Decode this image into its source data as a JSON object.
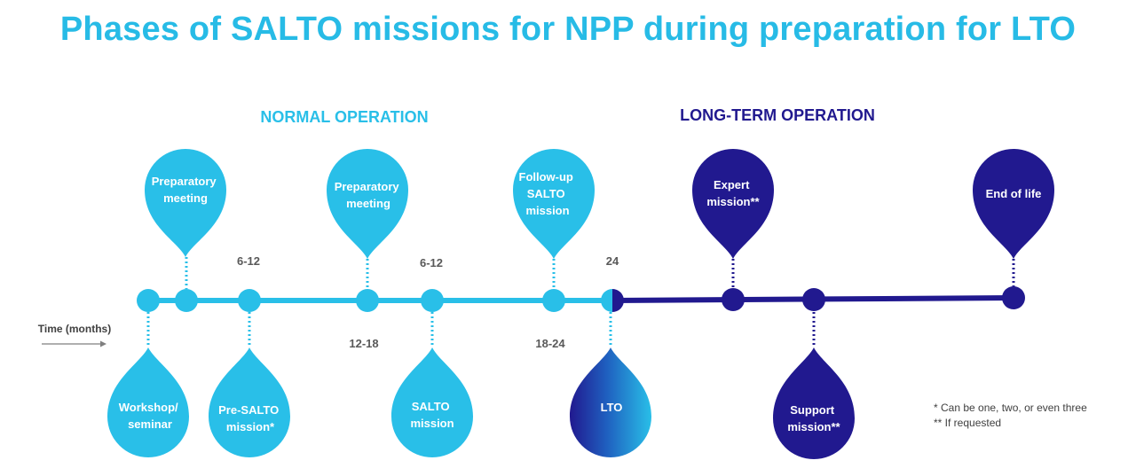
{
  "title": "Phases of SALTO missions for NPP during preparation for LTO",
  "colors": {
    "light": "#29bfe8",
    "dark": "#21198f",
    "arrow": "#7f7f7f",
    "tick_text": "#595959"
  },
  "phases": {
    "normal": "NORMAL OPERATION",
    "long_term": "LONG-TERM OPERATION"
  },
  "time_label": "Time (months)",
  "top_intervals": [
    "6-12",
    "6-12",
    "24"
  ],
  "bottom_intervals": [
    "12-18",
    "18-24"
  ],
  "events_top": [
    {
      "label": "Preparatory meeting",
      "lines": [
        "Preparatory",
        "meeting"
      ],
      "color": "light"
    },
    {
      "label": "Preparatory meeting",
      "lines": [
        "Preparatory",
        "meeting"
      ],
      "color": "light"
    },
    {
      "label": "Follow-up SALTO mission",
      "lines": [
        "Follow-up",
        "SALTO",
        "mission"
      ],
      "color": "light"
    },
    {
      "label": "Expert mission**",
      "lines": [
        "Expert",
        "mission**"
      ],
      "color": "dark"
    },
    {
      "label": "End of life",
      "lines": [
        "End of life"
      ],
      "color": "dark"
    }
  ],
  "events_bottom": [
    {
      "label": "Workshop/ seminar",
      "lines": [
        "Workshop/",
        "seminar"
      ],
      "color": "light"
    },
    {
      "label": "Pre-SALTO mission*",
      "lines": [
        "Pre-SALTO",
        "mission*"
      ],
      "color": "light"
    },
    {
      "label": "SALTO mission",
      "lines": [
        "SALTO",
        "mission"
      ],
      "color": "light"
    },
    {
      "label": "LTO",
      "lines": [
        "LTO"
      ],
      "color": "gradient"
    },
    {
      "label": "Support mission**",
      "lines": [
        "Support",
        "mission**"
      ],
      "color": "dark"
    }
  ],
  "footnotes": [
    "* Can be one, two, or even three",
    "** If requested"
  ]
}
